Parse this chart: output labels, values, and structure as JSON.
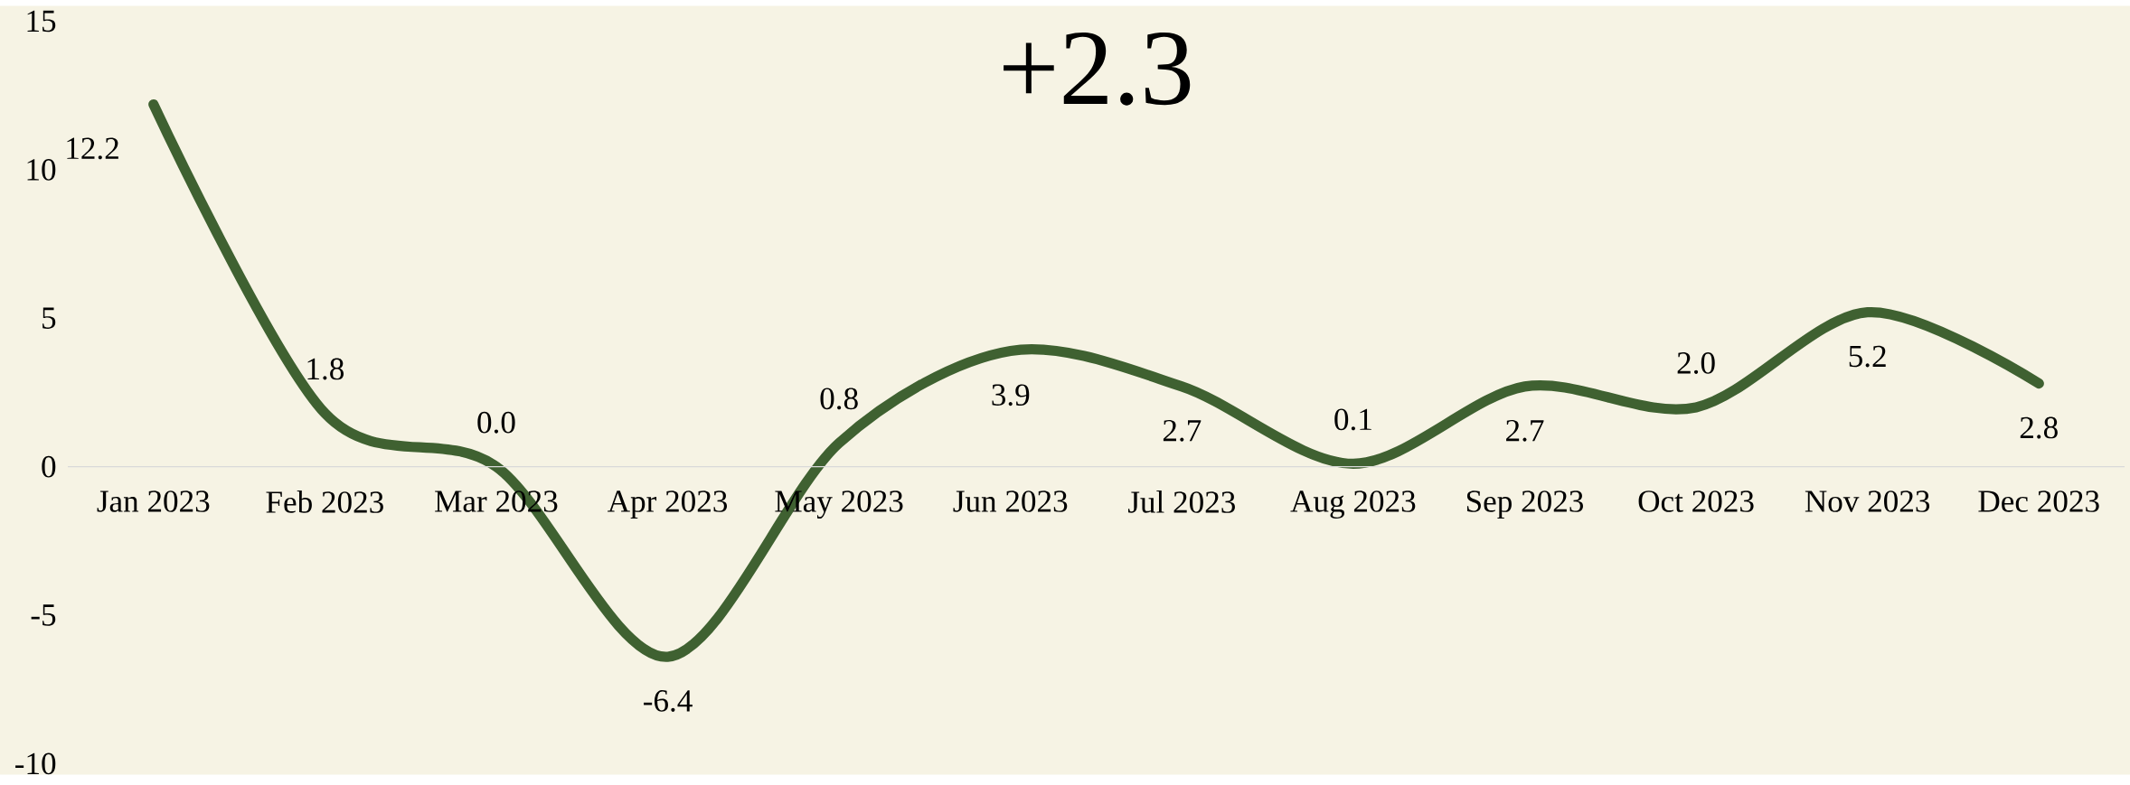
{
  "chart_data": {
    "type": "line",
    "title": "+2.3",
    "categories": [
      "Jan 2023",
      "Feb 2023",
      "Mar 2023",
      "Apr 2023",
      "May 2023",
      "Jun 2023",
      "Jul 2023",
      "Aug 2023",
      "Sep 2023",
      "Oct 2023",
      "Nov 2023",
      "Dec 2023"
    ],
    "values": [
      12.2,
      1.8,
      0.0,
      -6.4,
      0.8,
      3.9,
      2.7,
      0.1,
      2.7,
      2.0,
      5.2,
      2.8
    ],
    "color": "#3f6131",
    "ylim": [
      -10,
      15
    ],
    "yticks": [
      -10,
      -5,
      0,
      5,
      10,
      15
    ],
    "value_labels": [
      "12.2",
      "1.8",
      "0.0",
      "-6.4",
      "0.8",
      "3.9",
      "2.7",
      "0.1",
      "2.7",
      "2.0",
      "5.2",
      "2.8"
    ],
    "line_style": "solid"
  }
}
